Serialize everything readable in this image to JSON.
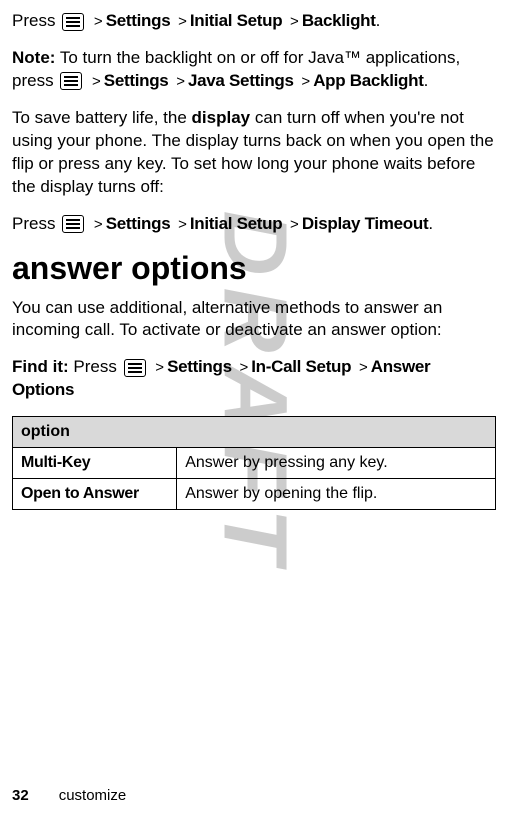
{
  "watermark": "DRAFT",
  "line1": {
    "prefix": "Press ",
    "path": [
      "Settings",
      "Initial Setup",
      "Backlight"
    ],
    "suffix": "."
  },
  "note": {
    "label": "Note:",
    "text_before": " To turn the backlight on or off for Java™ applications, press ",
    "path": [
      "Settings",
      "Java Settings",
      "App Backlight"
    ],
    "suffix": "."
  },
  "display_para": {
    "p1": "To save battery life, the ",
    "bold": "display",
    "p2": " can turn off when you're not using your phone. The display turns back on when you open the flip or press any key. To set how long your phone waits before the display turns off:"
  },
  "line2": {
    "prefix": "Press ",
    "path": [
      "Settings",
      "Initial Setup",
      "Display Timeout"
    ],
    "suffix": "."
  },
  "heading": "answer options",
  "answer_para": "You can use additional, alternative methods to answer an incoming call. To activate or deactivate an answer option:",
  "findit": {
    "label": "Find it:",
    "prefix": " Press ",
    "path": [
      "Settings",
      "In-Call Setup",
      "Answer Options"
    ]
  },
  "table": {
    "header": "option",
    "rows": [
      {
        "opt": "Multi-Key",
        "desc": "Answer by pressing any key."
      },
      {
        "opt": "Open to Answer",
        "desc": "Answer by opening the flip."
      }
    ]
  },
  "footer": {
    "page": "32",
    "section": "customize"
  },
  "chevron": ">"
}
